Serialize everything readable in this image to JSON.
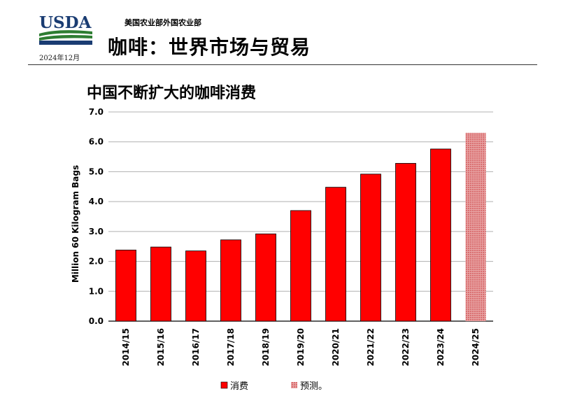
{
  "header": {
    "agency": "USDA",
    "department": "美国农业部外国农业部",
    "date": "2024年12月",
    "title": "咖啡：世界市场与贸易"
  },
  "colors": {
    "bar": "#ff0000",
    "bar_stroke": "#000000",
    "forecast": "#e8a5a5",
    "forecast_dot": "#c2181b",
    "usda_blue": "#1a3c72",
    "usda_green": "#2e7d32"
  },
  "chart_data": {
    "type": "bar",
    "title": "中国不断扩大的咖啡消费",
    "ylabel": "Million 60 Kilogram Bags",
    "xlabel": "",
    "ylim": [
      0,
      7
    ],
    "yticks": [
      "0.0",
      "1.0",
      "2.0",
      "3.0",
      "4.0",
      "5.0",
      "6.0",
      "7.0"
    ],
    "grid": true,
    "legend_position": "bottom",
    "categories": [
      "2014/15",
      "2015/16",
      "2016/17",
      "2017/18",
      "2018/19",
      "2019/20",
      "2020/21",
      "2021/22",
      "2022/23",
      "2023/24",
      "2024/25"
    ],
    "series": [
      {
        "name": "消费",
        "values": [
          2.38,
          2.48,
          2.35,
          2.72,
          2.92,
          3.7,
          4.48,
          4.92,
          5.28,
          5.76,
          null
        ]
      },
      {
        "name": "预测。",
        "values": [
          null,
          null,
          null,
          null,
          null,
          null,
          null,
          null,
          null,
          null,
          6.3
        ]
      }
    ]
  }
}
